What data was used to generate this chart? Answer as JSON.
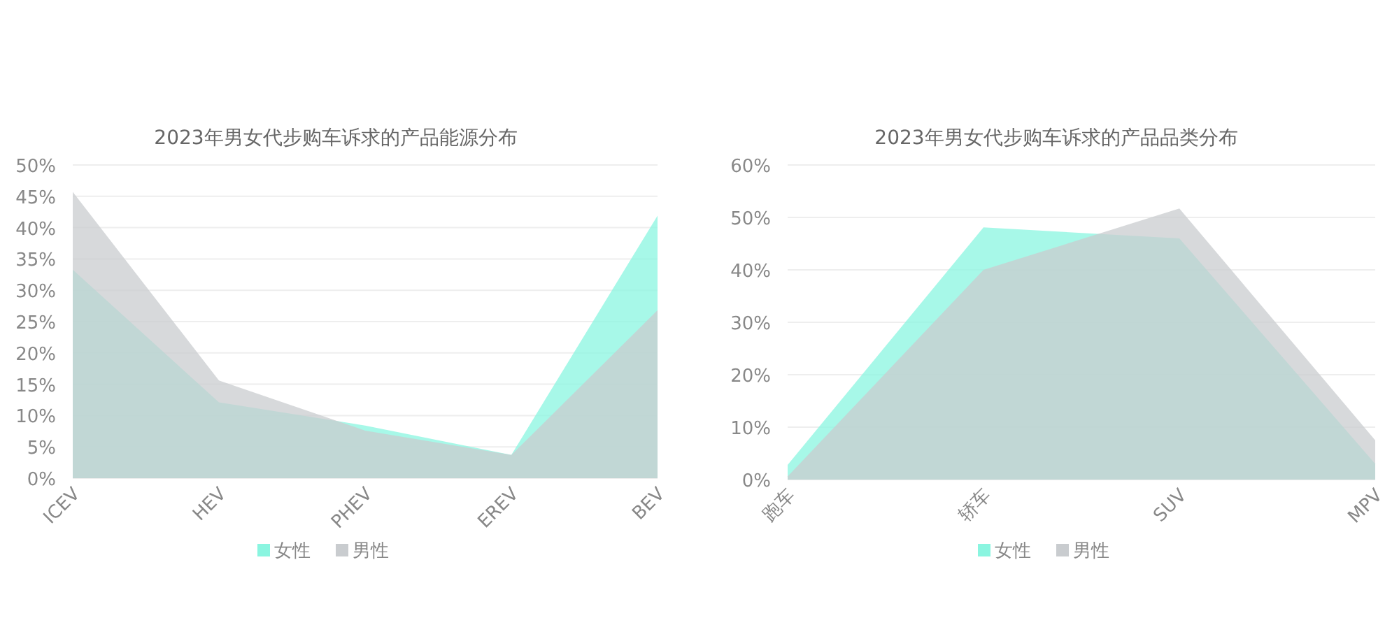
{
  "chart_data": [
    {
      "type": "area",
      "title": "2023年男女代步购车诉求的产品能源分布",
      "categories": [
        "ICEV",
        "HEV",
        "PHEV",
        "EREV",
        "BEV"
      ],
      "series": [
        {
          "name": "女性",
          "color": "#8af5e0",
          "values": [
            33.3,
            12.1,
            8.4,
            3.7,
            41.9
          ]
        },
        {
          "name": "男性",
          "color": "#c9cccf",
          "values": [
            45.7,
            15.6,
            7.6,
            3.7,
            26.8
          ]
        }
      ],
      "ylim": [
        0,
        50
      ],
      "yticks": [
        {
          "value": 0,
          "label": "0%"
        },
        {
          "value": 5,
          "label": "5%"
        },
        {
          "value": 10,
          "label": "10%"
        },
        {
          "value": 15,
          "label": "15%"
        },
        {
          "value": 20,
          "label": "20%"
        },
        {
          "value": 25,
          "label": "25%"
        },
        {
          "value": 30,
          "label": "30%"
        },
        {
          "value": 35,
          "label": "35%"
        },
        {
          "value": 40,
          "label": "40%"
        },
        {
          "value": 45,
          "label": "45%"
        },
        {
          "value": 50,
          "label": "50%"
        }
      ],
      "grid": "y",
      "legend": "bottom"
    },
    {
      "type": "area",
      "title": "2023年男女代步购车诉求的产品品类分布",
      "categories": [
        "跑车",
        "轿车",
        "SUV",
        "MPV"
      ],
      "series": [
        {
          "name": "女性",
          "color": "#8af5e0",
          "values": [
            2.8,
            48.1,
            46.0,
            3.0
          ]
        },
        {
          "name": "男性",
          "color": "#c9cccf",
          "values": [
            0.6,
            40.0,
            51.7,
            7.5
          ]
        }
      ],
      "ylim": [
        0,
        60
      ],
      "yticks": [
        {
          "value": 0,
          "label": "0%"
        },
        {
          "value": 10,
          "label": "10%"
        },
        {
          "value": 20,
          "label": "20%"
        },
        {
          "value": 30,
          "label": "30%"
        },
        {
          "value": 40,
          "label": "40%"
        },
        {
          "value": 50,
          "label": "50%"
        },
        {
          "value": 60,
          "label": "60%"
        }
      ],
      "grid": "y",
      "legend": "bottom"
    }
  ]
}
